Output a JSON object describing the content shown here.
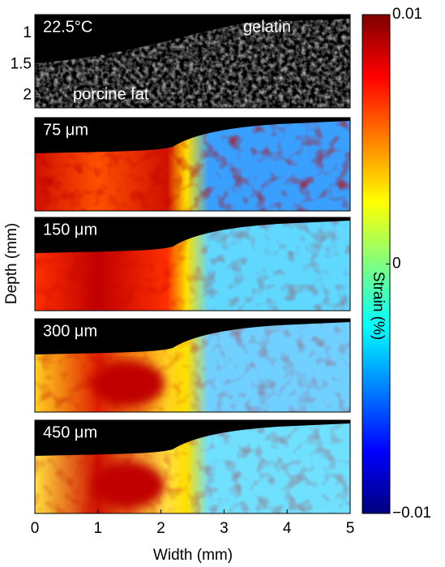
{
  "chart_data": {
    "type": "heatmap-panels",
    "xlabel": "Width (mm)",
    "ylabel": "Depth (mm)",
    "xlim": [
      0,
      5
    ],
    "xticks": [
      0,
      1,
      2,
      3,
      4,
      5
    ],
    "ylim": [
      0.7,
      2.2
    ],
    "yticks": [
      1,
      1.5,
      2
    ],
    "panels": [
      "22.5°C",
      "75 μm",
      "150 μm",
      "300 μm",
      "450 μm"
    ],
    "annotations": [
      "gelatin",
      "porcine fat"
    ],
    "colorbar": {
      "label": "Strain (%)",
      "clim": [
        -0.01,
        0.01
      ],
      "ticks": [
        {
          "value": -0.01,
          "label": "−0.01"
        },
        0,
        0.01
      ]
    }
  }
}
